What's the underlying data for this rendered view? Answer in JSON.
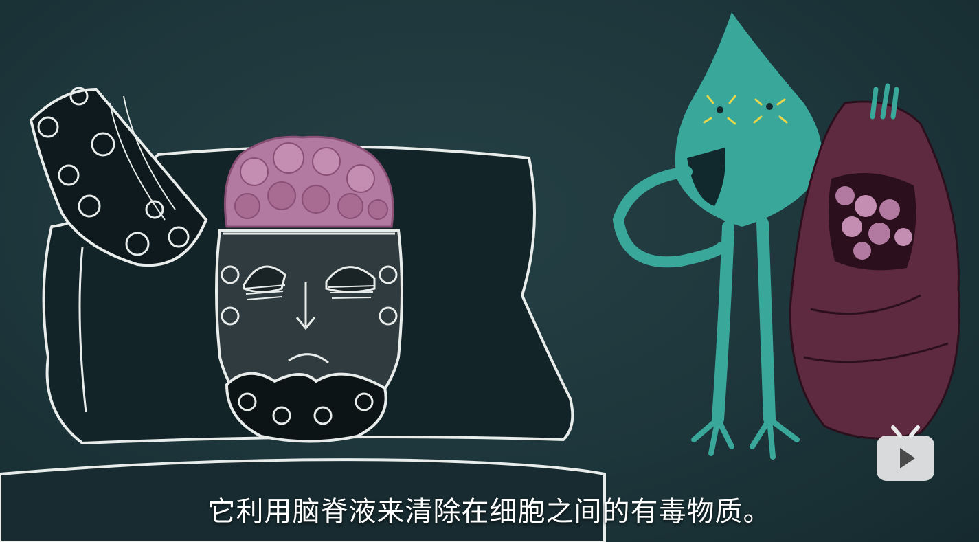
{
  "subtitle": "它利用脑脊液来清除在细胞之间的有毒物质。",
  "watermark": {
    "icon": "bilibili-tv-play-icon"
  },
  "colors": {
    "background": "#1d363b",
    "chalk": "#e8ecea",
    "brain": "#b27aa0",
    "creature": "#3aa79b",
    "sack": "#5e2a3f"
  }
}
